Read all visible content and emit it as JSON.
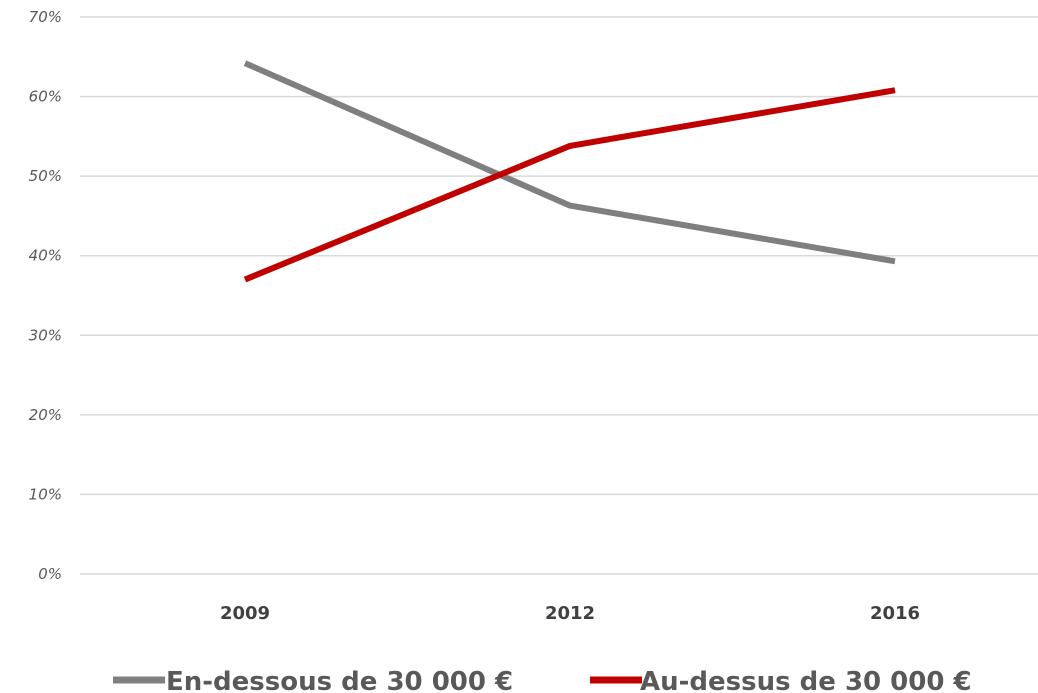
{
  "chart_data": {
    "type": "line",
    "categories": [
      "2009",
      "2012",
      "2016"
    ],
    "series": [
      {
        "name": "En-dessous de 30 000 €",
        "values": [
          64.2,
          46.3,
          39.3
        ],
        "color": "#7f7f7f"
      },
      {
        "name": "Au-dessus de 30 000 €",
        "values": [
          37.0,
          53.8,
          60.8
        ],
        "color": "#c00000"
      }
    ],
    "y_ticks": [
      "0%",
      "10%",
      "20%",
      "30%",
      "40%",
      "50%",
      "60%",
      "70%"
    ],
    "ylim": [
      0,
      70
    ],
    "y_unit": "%",
    "grid": true,
    "legend_position": "bottom",
    "title": "",
    "xlabel": "",
    "ylabel": ""
  }
}
